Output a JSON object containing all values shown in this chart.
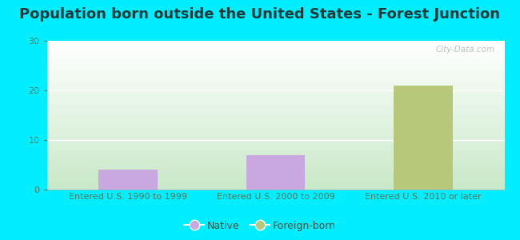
{
  "title": "Population born outside the United States - Forest Junction",
  "categories": [
    "Entered U.S. 1990 to 1999",
    "Entered U.S. 2000 to 2009",
    "Entered U.S. 2010 or later"
  ],
  "native_values": [
    4,
    7,
    0
  ],
  "foreign_values": [
    0,
    0,
    21
  ],
  "native_color": "#c9a8e0",
  "foreign_color": "#b8c87a",
  "ylim": [
    0,
    30
  ],
  "yticks": [
    0,
    10,
    20,
    30
  ],
  "bar_width": 0.4,
  "background_outer": "#00eeff",
  "background_inner_top": "#ffffff",
  "background_inner_bottom": "#c8e8c8",
  "title_fontsize": 13,
  "tick_fontsize": 8,
  "title_color": "#1a3a3a",
  "tick_color": "#557755",
  "legend_labels": [
    "Native",
    "Foreign-born"
  ],
  "watermark": "City-Data.com"
}
